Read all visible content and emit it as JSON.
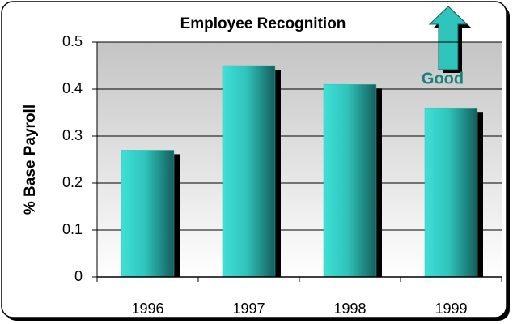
{
  "chart_data": {
    "type": "bar",
    "title": "Employee Recognition",
    "y_label": "% Base Payroll",
    "categories": [
      "1996",
      "1997",
      "1998",
      "1999"
    ],
    "values": [
      0.27,
      0.45,
      0.41,
      0.36
    ],
    "color": "#2fc4bc",
    "ylim": [
      0,
      0.5
    ],
    "yticks": [
      0,
      0.1,
      0.2,
      0.3,
      0.4,
      0.5
    ],
    "grid": true,
    "annotation": "Good"
  }
}
